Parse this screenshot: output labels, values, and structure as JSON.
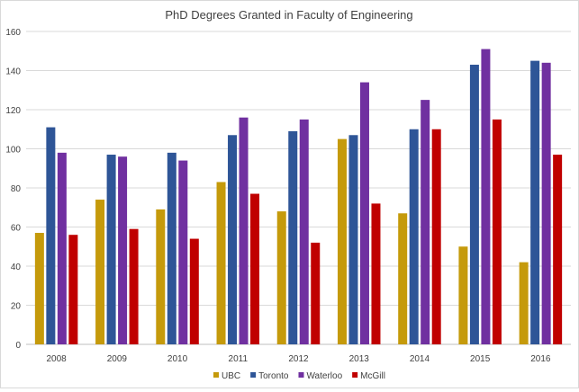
{
  "chart_data": {
    "type": "bar",
    "title": "PhD Degrees Granted in Faculty of Engineering",
    "xlabel": "",
    "ylabel": "",
    "categories": [
      "2008",
      "2009",
      "2010",
      "2011",
      "2012",
      "2013",
      "2014",
      "2015",
      "2016"
    ],
    "ylim": [
      0,
      160
    ],
    "yticks": [
      0,
      20,
      40,
      60,
      80,
      100,
      120,
      140,
      160
    ],
    "grid": true,
    "legend": "bottom",
    "series": [
      {
        "name": "UBC",
        "color": "#c59a0b",
        "values": [
          57,
          74,
          69,
          83,
          68,
          105,
          67,
          50,
          42
        ]
      },
      {
        "name": "Toronto",
        "color": "#2e5597",
        "values": [
          111,
          97,
          98,
          107,
          109,
          107,
          110,
          143,
          145
        ]
      },
      {
        "name": "Waterloo",
        "color": "#7030a0",
        "values": [
          98,
          96,
          94,
          116,
          115,
          134,
          125,
          151,
          144
        ]
      },
      {
        "name": "McGill",
        "color": "#c00000",
        "values": [
          56,
          59,
          54,
          77,
          52,
          72,
          110,
          115,
          97
        ]
      }
    ]
  }
}
